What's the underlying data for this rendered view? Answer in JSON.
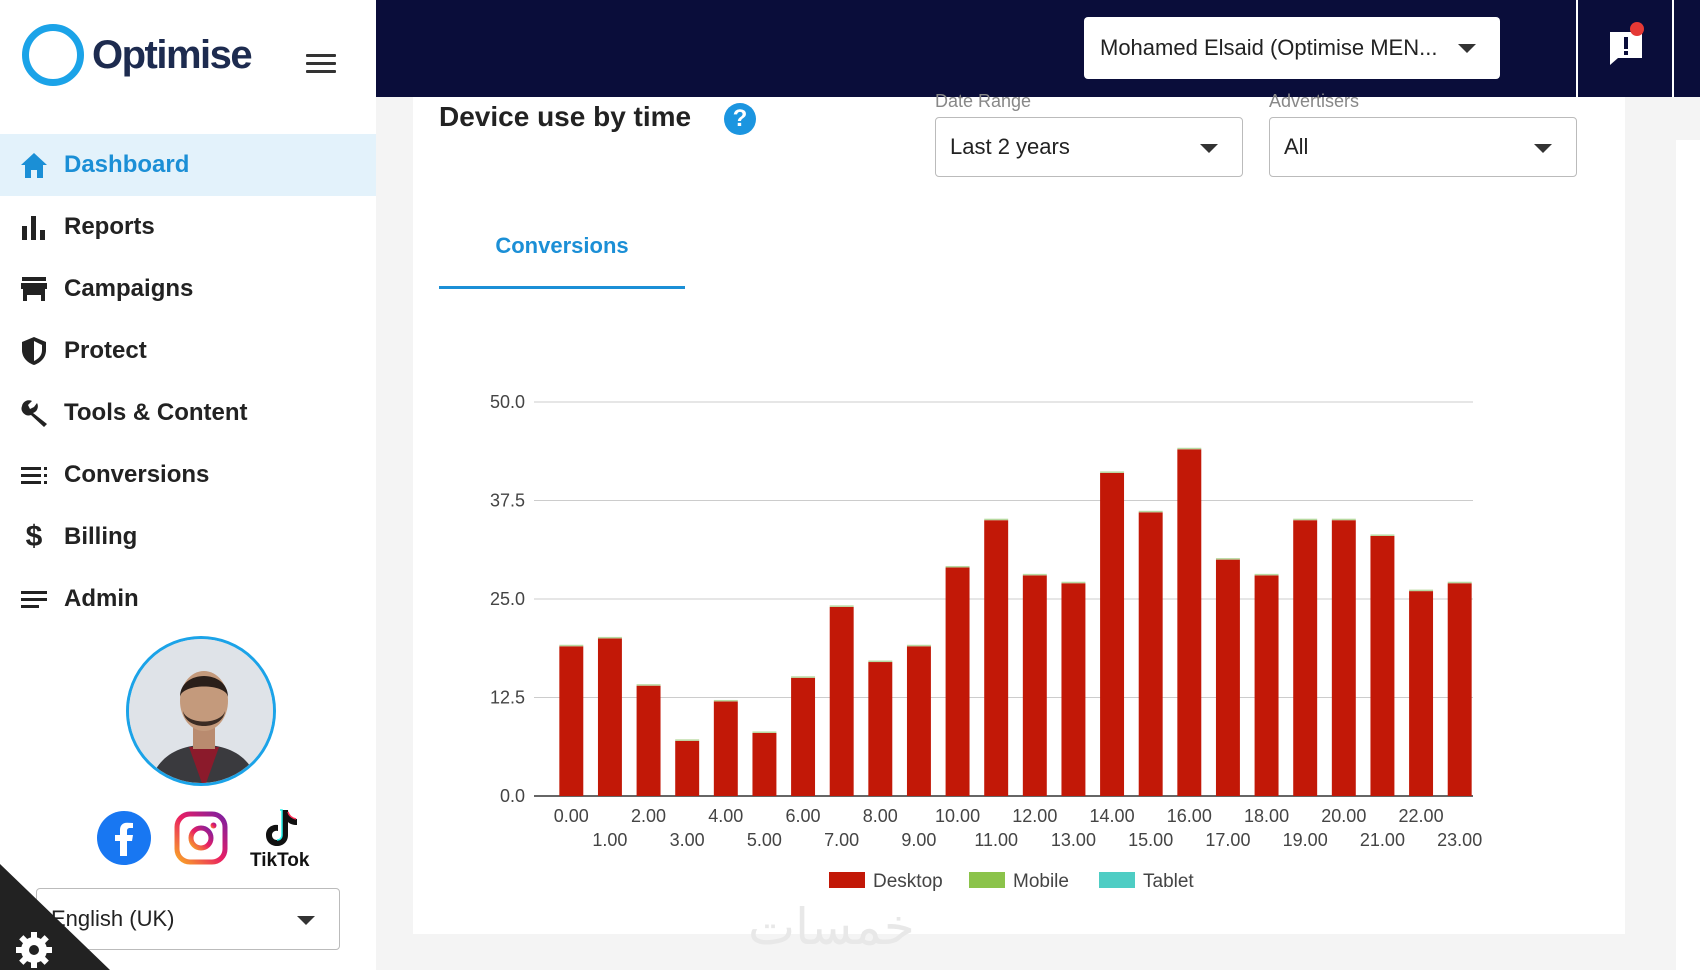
{
  "app": {
    "logo_text": "Optimise"
  },
  "sidebar": {
    "items": [
      {
        "label": "Dashboard",
        "icon": "home-icon",
        "active": true
      },
      {
        "label": "Reports",
        "icon": "bar-chart-icon"
      },
      {
        "label": "Campaigns",
        "icon": "store-icon"
      },
      {
        "label": "Protect",
        "icon": "shield-icon"
      },
      {
        "label": "Tools & Content",
        "icon": "wrench-icon"
      },
      {
        "label": "Conversions",
        "icon": "list-icon"
      },
      {
        "label": "Billing",
        "icon": "dollar-icon"
      },
      {
        "label": "Admin",
        "icon": "menu-lines-icon"
      }
    ],
    "social": {
      "tiktok_label": "TikTok"
    },
    "language": "English (UK)"
  },
  "header": {
    "account": "Mohamed Elsaid (Optimise MEN..."
  },
  "card": {
    "title": "Device use by time",
    "date_range": {
      "label": "Date Range",
      "value": "Last 2 years"
    },
    "advertisers": {
      "label": "Advertisers",
      "value": "All"
    },
    "tab": "Conversions"
  },
  "colors": {
    "desktop": "#c21807",
    "mobile": "#8bc34a",
    "tablet": "#4ecdc4",
    "accent": "#1b8fd6",
    "header": "#0a0d3a"
  },
  "chart_data": {
    "type": "bar",
    "stacked": true,
    "categories": [
      "0.00",
      "1.00",
      "2.00",
      "3.00",
      "4.00",
      "5.00",
      "6.00",
      "7.00",
      "8.00",
      "9.00",
      "10.00",
      "11.00",
      "12.00",
      "13.00",
      "14.00",
      "15.00",
      "16.00",
      "17.00",
      "18.00",
      "19.00",
      "20.00",
      "21.00",
      "22.00",
      "23.00"
    ],
    "series": [
      {
        "name": "Desktop",
        "values": [
          19,
          20,
          14,
          7,
          12,
          8,
          15,
          24,
          17,
          19,
          29,
          35,
          28,
          27,
          41,
          36,
          44,
          30,
          28,
          35,
          35,
          33,
          26,
          27
        ]
      },
      {
        "name": "Mobile",
        "values": [
          0,
          0,
          0,
          0,
          0,
          0,
          0,
          0,
          0,
          0,
          0,
          0,
          0,
          0,
          0,
          0,
          0,
          0,
          0,
          0,
          0,
          0,
          0,
          0
        ]
      },
      {
        "name": "Tablet",
        "values": [
          0,
          0,
          0,
          0,
          0,
          0,
          0,
          0,
          0,
          0,
          0,
          0,
          0,
          0,
          0,
          0,
          0,
          0,
          0,
          0,
          0,
          0,
          0,
          0
        ]
      }
    ],
    "yticks": [
      "0.0",
      "12.5",
      "25.0",
      "37.5",
      "50.0"
    ],
    "ylim": [
      0,
      50
    ],
    "legend": "bottom",
    "title": "",
    "xlabel": "",
    "ylabel": ""
  }
}
